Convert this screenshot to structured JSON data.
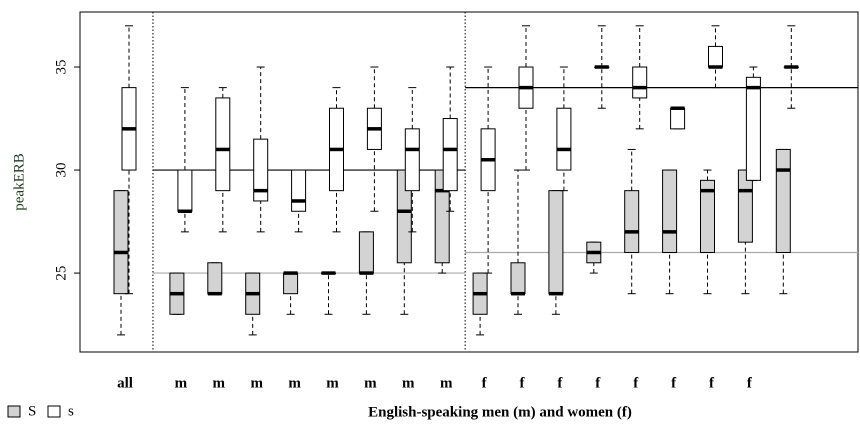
{
  "chart_data": {
    "type": "boxplot",
    "y_label": "peakERB",
    "x_label": "English-speaking men (m) and women (f)",
    "categories": [
      "all",
      "m",
      "m",
      "m",
      "m",
      "m",
      "m",
      "m",
      "m",
      "f",
      "f",
      "f",
      "f",
      "f",
      "f",
      "f",
      "f",
      null
    ],
    "ylim": [
      21.17,
      37.67
    ],
    "yticks": [
      25,
      30,
      35
    ],
    "series": [
      {
        "name": "S",
        "color": "#d3d3d3",
        "boxes": [
          {
            "min": 22,
            "q1": 24,
            "median": 26,
            "q3": 29,
            "max": 29
          },
          {
            "min": 23,
            "q1": 23,
            "median": 24,
            "q3": 25,
            "max": 25
          },
          {
            "min": 24,
            "q1": 24,
            "median": 24,
            "q3": 25.5,
            "max": 25.5
          },
          {
            "min": 22,
            "q1": 23,
            "median": 24,
            "q3": 25,
            "max": 25
          },
          {
            "min": 23,
            "q1": 24,
            "median": 25,
            "q3": 25,
            "max": 25
          },
          {
            "min": 23,
            "q1": 25,
            "median": 25,
            "q3": 25,
            "max": 25
          },
          {
            "min": 23,
            "q1": 25,
            "median": 25,
            "q3": 27,
            "max": 27
          },
          {
            "min": 23,
            "q1": 25.5,
            "median": 28,
            "q3": 30,
            "max": 30
          },
          {
            "min": 25,
            "q1": 25.5,
            "median": 29,
            "q3": 30,
            "max": 30
          },
          {
            "min": 22,
            "q1": 23,
            "median": 24,
            "q3": 25,
            "max": 25
          },
          {
            "min": 23,
            "q1": 24,
            "median": 24,
            "q3": 25.5,
            "max": 30
          },
          {
            "min": 23,
            "q1": 24,
            "median": 24,
            "q3": 29,
            "max": 29
          },
          {
            "min": 25,
            "q1": 25.5,
            "median": 26,
            "q3": 26.5,
            "max": 26.5
          },
          {
            "min": 24,
            "q1": 26,
            "median": 27,
            "q3": 29,
            "max": 31
          },
          {
            "min": 24,
            "q1": 26,
            "median": 27,
            "q3": 30,
            "max": 30
          },
          {
            "min": 24,
            "q1": 26,
            "median": 29,
            "q3": 29.5,
            "max": 30
          },
          {
            "min": 24,
            "q1": 26.5,
            "median": 29,
            "q3": 30,
            "max": 30
          },
          {
            "min": 24,
            "q1": 26,
            "median": 30,
            "q3": 31,
            "max": 31
          }
        ]
      },
      {
        "name": "s",
        "color": "#ffffff",
        "boxes": [
          {
            "min": 24,
            "q1": 30,
            "median": 32,
            "q3": 34,
            "max": 37
          },
          {
            "min": 27,
            "q1": 28,
            "median": 28,
            "q3": 30,
            "max": 34
          },
          {
            "min": 27,
            "q1": 29,
            "median": 31,
            "q3": 33.5,
            "max": 34
          },
          {
            "min": 27,
            "q1": 28.5,
            "median": 29,
            "q3": 31.5,
            "max": 35
          },
          {
            "min": 27,
            "q1": 28,
            "median": 28.5,
            "q3": 30,
            "max": 30
          },
          {
            "min": 27,
            "q1": 29,
            "median": 31,
            "q3": 33,
            "max": 34
          },
          {
            "min": 28,
            "q1": 31,
            "median": 32,
            "q3": 33,
            "max": 35
          },
          {
            "min": 27,
            "q1": 29,
            "median": 31,
            "q3": 32,
            "max": 34
          },
          {
            "min": 28,
            "q1": 29,
            "median": 31,
            "q3": 32.5,
            "max": 35
          },
          {
            "min": 25,
            "q1": 29,
            "median": 30.5,
            "q3": 32,
            "max": 35
          },
          {
            "min": 30,
            "q1": 33,
            "median": 34,
            "q3": 35,
            "max": 37
          },
          {
            "min": 29,
            "q1": 30,
            "median": 31,
            "q3": 33,
            "max": 35
          },
          {
            "min": 33,
            "q1": 35,
            "median": 35,
            "q3": 35,
            "max": 37
          },
          {
            "min": 32,
            "q1": 33.5,
            "median": 34,
            "q3": 35,
            "max": 37
          },
          {
            "min": 32,
            "q1": 32,
            "median": 33,
            "q3": 33,
            "max": 33
          },
          {
            "min": 34,
            "q1": 35,
            "median": 35,
            "q3": 36,
            "max": 37
          },
          {
            "min": 29.5,
            "q1": 29.5,
            "median": 34,
            "q3": 34.5,
            "max": 35
          },
          {
            "min": 33,
            "q1": 35,
            "median": 35,
            "q3": 35,
            "max": 37
          }
        ]
      }
    ],
    "reference_lines": [
      {
        "group": "m",
        "values": [
          30,
          25
        ],
        "colors": [
          "#000000",
          "#aaaaaa"
        ]
      },
      {
        "group": "f",
        "values": [
          34,
          26
        ],
        "colors": [
          "#000000",
          "#aaaaaa"
        ]
      }
    ]
  }
}
